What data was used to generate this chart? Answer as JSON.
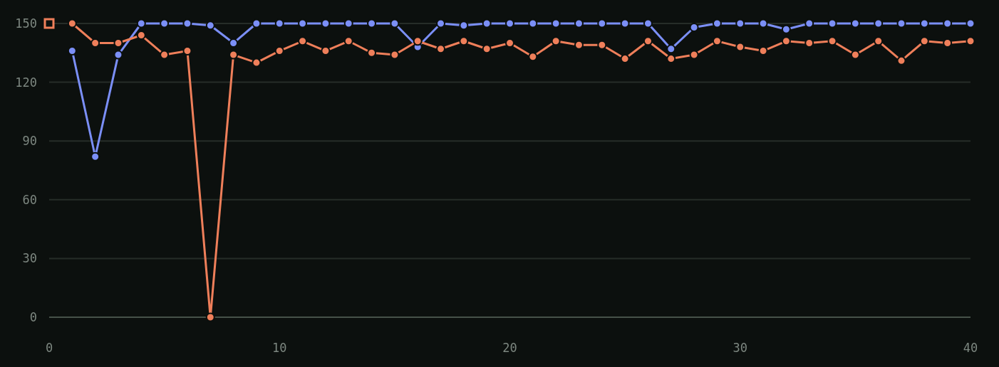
{
  "chart_data": {
    "type": "line",
    "x": [
      1,
      2,
      3,
      4,
      5,
      6,
      7,
      8,
      9,
      10,
      11,
      12,
      13,
      14,
      15,
      16,
      17,
      18,
      19,
      20,
      21,
      22,
      23,
      24,
      25,
      26,
      27,
      28,
      29,
      30,
      31,
      32,
      33,
      34,
      35,
      36,
      37,
      38,
      39,
      40
    ],
    "series": [
      {
        "color": "#7b8ff7",
        "values": [
          136,
          82,
          134,
          150,
          150,
          150,
          149,
          140,
          150,
          150,
          150,
          150,
          150,
          150,
          150,
          138,
          150,
          149,
          150,
          150,
          150,
          150,
          150,
          150,
          150,
          150,
          137,
          148,
          150,
          150,
          150,
          147,
          150,
          150,
          150,
          150,
          150,
          150,
          150,
          150
        ]
      },
      {
        "color": "#ef7f5a",
        "values": [
          150,
          140,
          140,
          144,
          134,
          136,
          0,
          134,
          130,
          136,
          141,
          136,
          141,
          135,
          134,
          141,
          137,
          141,
          137,
          140,
          133,
          141,
          139,
          139,
          132,
          141,
          132,
          134,
          141,
          138,
          136,
          141,
          140,
          141,
          134,
          141,
          131,
          141,
          140,
          141
        ]
      },
      {
        "type": "scatter",
        "marker": "square",
        "color": "#ef7f5a",
        "x": [
          0
        ],
        "values": [
          150
        ]
      }
    ],
    "xlim": [
      0,
      40
    ],
    "xticks": [
      0,
      10,
      20,
      30,
      40
    ],
    "ylim": [
      0,
      150
    ],
    "yticks": [
      0,
      30,
      60,
      90,
      120,
      150
    ],
    "grid": "y",
    "marker": "circle"
  }
}
